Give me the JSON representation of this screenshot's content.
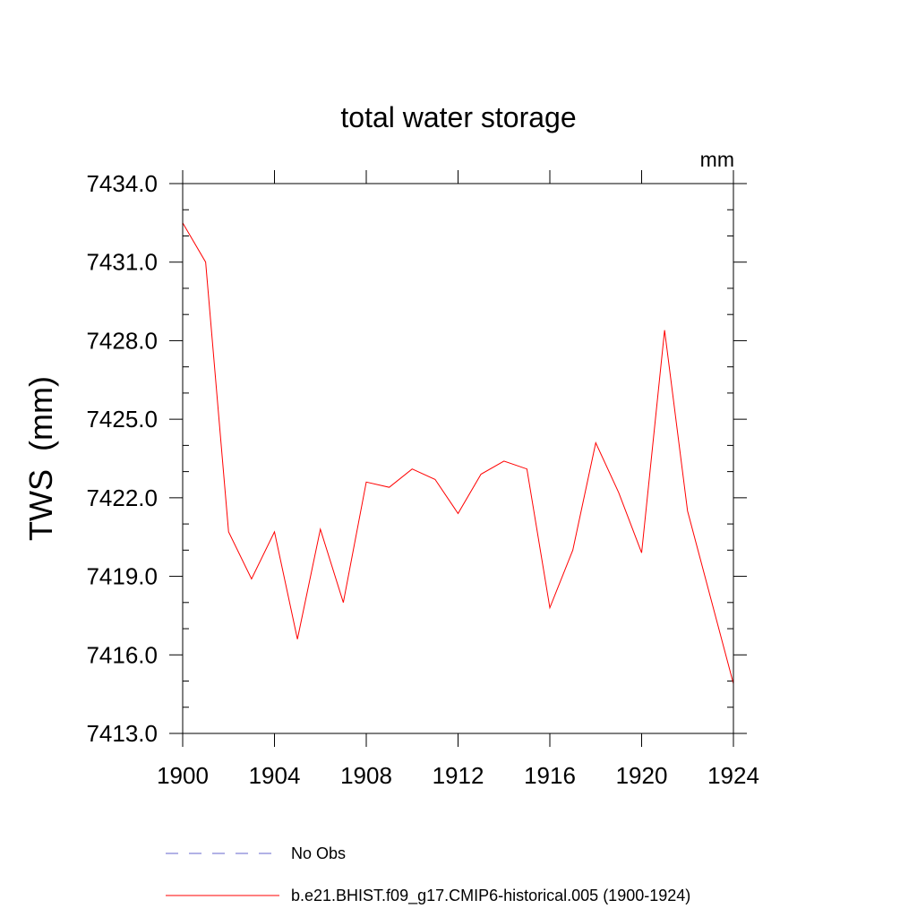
{
  "chart_data": {
    "type": "line",
    "title": "total water storage",
    "units_label": "mm",
    "ylabel": "TWS  (mm)",
    "xlabel": "",
    "xlim": [
      1900,
      1924
    ],
    "ylim": [
      7413.0,
      7434.0
    ],
    "x_ticks": [
      1900,
      1904,
      1908,
      1912,
      1916,
      1920,
      1924
    ],
    "x_tick_labels": [
      "1900",
      "1904",
      "1908",
      "1912",
      "1916",
      "1920",
      "1924"
    ],
    "y_ticks": [
      7413.0,
      7416.0,
      7419.0,
      7422.0,
      7425.0,
      7428.0,
      7431.0,
      7434.0
    ],
    "y_tick_labels": [
      "7413.0",
      "7416.0",
      "7419.0",
      "7422.0",
      "7425.0",
      "7428.0",
      "7431.0",
      "7434.0"
    ],
    "x": [
      1900,
      1901,
      1902,
      1903,
      1904,
      1905,
      1906,
      1907,
      1908,
      1909,
      1910,
      1911,
      1912,
      1913,
      1914,
      1915,
      1916,
      1917,
      1918,
      1919,
      1920,
      1921,
      1922,
      1923,
      1924
    ],
    "series": [
      {
        "name": "b.e21.BHIST.f09_g17.CMIP6-historical.005 (1900-1924)",
        "color": "#ff0000",
        "dash": "solid",
        "values": [
          7432.5,
          7431.0,
          7420.7,
          7418.9,
          7420.7,
          7416.6,
          7420.8,
          7418.0,
          7422.6,
          7422.4,
          7423.1,
          7422.7,
          7421.4,
          7422.9,
          7423.4,
          7423.1,
          7417.8,
          7420.0,
          7424.1,
          7422.2,
          7419.9,
          7428.4,
          7421.5,
          7418.2,
          7414.9
        ]
      }
    ],
    "legend": {
      "placement": "bottom-center",
      "entries": [
        {
          "label": "No Obs",
          "color": "#6666cc",
          "dash": "dashed"
        },
        {
          "label": "b.e21.BHIST.f09_g17.CMIP6-historical.005 (1900-1924)",
          "color": "#ff0000",
          "dash": "solid"
        }
      ]
    }
  }
}
